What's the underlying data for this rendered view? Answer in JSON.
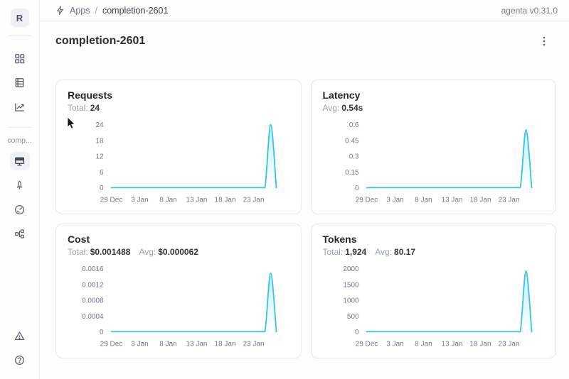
{
  "header": {
    "breadcrumb": {
      "section": "Apps",
      "separator": "/",
      "current": "completion-2601"
    },
    "version": "agenta v0.31.0"
  },
  "sidebar": {
    "logo_letter": "R",
    "app_label": "comp...",
    "icons": [
      "grid-icon",
      "table-icon",
      "chart-trend-icon",
      "monitor-icon",
      "rocket-icon",
      "gauge-icon",
      "tree-icon",
      "warning-triangle-icon",
      "help-circle-icon"
    ],
    "selected_item": "monitor"
  },
  "page": {
    "title": "completion-2601"
  },
  "colors": {
    "line": "#36c5e1",
    "fill_top": "rgba(54,197,225,0.30)",
    "fill_bottom": "rgba(54,197,225,0)"
  },
  "chart_data": [
    {
      "type": "area",
      "title": "Requests",
      "stats": [
        {
          "label": "Total:",
          "value": "24"
        }
      ],
      "y_tick_labels": [
        "0",
        "6",
        "12",
        "18",
        "24"
      ],
      "ylim": [
        0,
        24
      ],
      "x_ticks": [
        {
          "label": "29 Dec",
          "day": 0
        },
        {
          "label": "3 Jan",
          "day": 5
        },
        {
          "label": "8 Jan",
          "day": 10
        },
        {
          "label": "13 Jan",
          "day": 15
        },
        {
          "label": "18 Jan",
          "day": 20
        },
        {
          "label": "23 Jan",
          "day": 25
        }
      ],
      "num_days": 30,
      "values": [
        0,
        0,
        0,
        0,
        0,
        0,
        0,
        0,
        0,
        0,
        0,
        0,
        0,
        0,
        0,
        0,
        0,
        0,
        0,
        0,
        0,
        0,
        0,
        0,
        0,
        0,
        0,
        0,
        24,
        0
      ]
    },
    {
      "type": "area",
      "title": "Latency",
      "stats": [
        {
          "label": "Avg:",
          "value": "0.54s"
        }
      ],
      "y_tick_labels": [
        "0",
        "0.15",
        "0.3",
        "0.45",
        "0.6"
      ],
      "ylim": [
        0,
        0.6
      ],
      "x_ticks": [
        {
          "label": "29 Dec",
          "day": 0
        },
        {
          "label": "3 Jan",
          "day": 5
        },
        {
          "label": "8 Jan",
          "day": 10
        },
        {
          "label": "13 Jan",
          "day": 15
        },
        {
          "label": "18 Jan",
          "day": 20
        },
        {
          "label": "23 Jan",
          "day": 25
        }
      ],
      "num_days": 30,
      "values": [
        0,
        0,
        0,
        0,
        0,
        0,
        0,
        0,
        0,
        0,
        0,
        0,
        0,
        0,
        0,
        0,
        0,
        0,
        0,
        0,
        0,
        0,
        0,
        0,
        0,
        0,
        0,
        0,
        0.55,
        0
      ]
    },
    {
      "type": "area",
      "title": "Cost",
      "stats": [
        {
          "label": "Total:",
          "value": "$0.001488"
        },
        {
          "label": "Avg:",
          "value": "$0.000062"
        }
      ],
      "y_tick_labels": [
        "0",
        "0.0004",
        "0.0008",
        "0.0012",
        "0.0016"
      ],
      "ylim": [
        0,
        0.0016
      ],
      "x_ticks": [
        {
          "label": "29 Dec",
          "day": 0
        },
        {
          "label": "3 Jan",
          "day": 5
        },
        {
          "label": "8 Jan",
          "day": 10
        },
        {
          "label": "13 Jan",
          "day": 15
        },
        {
          "label": "18 Jan",
          "day": 20
        },
        {
          "label": "23 Jan",
          "day": 25
        }
      ],
      "num_days": 30,
      "values": [
        0,
        0,
        0,
        0,
        0,
        0,
        0,
        0,
        0,
        0,
        0,
        0,
        0,
        0,
        0,
        0,
        0,
        0,
        0,
        0,
        0,
        0,
        0,
        0,
        0,
        0,
        0,
        0,
        0.001488,
        0
      ]
    },
    {
      "type": "area",
      "title": "Tokens",
      "stats": [
        {
          "label": "Total:",
          "value": "1,924"
        },
        {
          "label": "Avg:",
          "value": "80.17"
        }
      ],
      "y_tick_labels": [
        "0",
        "500",
        "1000",
        "1500",
        "2000"
      ],
      "ylim": [
        0,
        2000
      ],
      "x_ticks": [
        {
          "label": "29 Dec",
          "day": 0
        },
        {
          "label": "3 Jan",
          "day": 5
        },
        {
          "label": "8 Jan",
          "day": 10
        },
        {
          "label": "13 Jan",
          "day": 15
        },
        {
          "label": "18 Jan",
          "day": 20
        },
        {
          "label": "23 Jan",
          "day": 25
        }
      ],
      "num_days": 30,
      "values": [
        0,
        0,
        0,
        0,
        0,
        0,
        0,
        0,
        0,
        0,
        0,
        0,
        0,
        0,
        0,
        0,
        0,
        0,
        0,
        0,
        0,
        0,
        0,
        0,
        0,
        0,
        0,
        0,
        1924,
        0
      ]
    }
  ]
}
